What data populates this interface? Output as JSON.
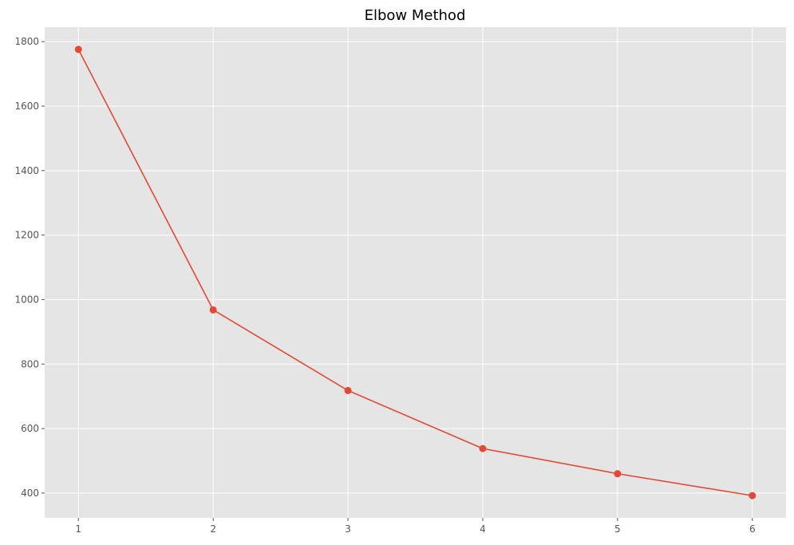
{
  "chart_data": {
    "type": "line",
    "title": "Elbow Method",
    "xlabel": "",
    "ylabel": "",
    "x": [
      1,
      2,
      3,
      4,
      5,
      6
    ],
    "series": [
      {
        "values": [
          1776,
          968,
          718,
          538,
          460,
          392
        ],
        "color": "#e24a33",
        "marker": "circle"
      }
    ],
    "xticks": [
      1,
      2,
      3,
      4,
      5,
      6
    ],
    "yticks": [
      400,
      600,
      800,
      1000,
      1200,
      1400,
      1600,
      1800
    ],
    "xlim": [
      0.75,
      6.25
    ],
    "ylim": [
      323,
      1845
    ],
    "grid": true,
    "legend": "none",
    "background_color": "#e5e5e5"
  }
}
